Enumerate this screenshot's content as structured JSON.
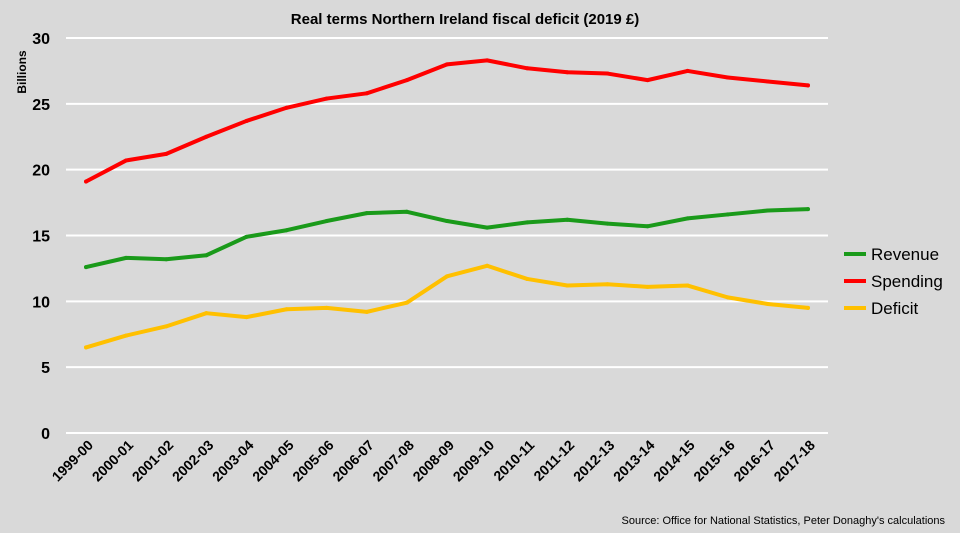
{
  "chart_data": {
    "type": "line",
    "title": "Real terms Northern Ireland fiscal deficit (2019 £)",
    "ylabel": "Billions",
    "xlabel": "",
    "ylim": [
      0,
      30
    ],
    "yticks": [
      0,
      5,
      10,
      15,
      20,
      25,
      30
    ],
    "grid": true,
    "legend_position": "right",
    "categories": [
      "1999-00",
      "2000-01",
      "2001-02",
      "2002-03",
      "2003-04",
      "2004-05",
      "2005-06",
      "2006-07",
      "2007-08",
      "2008-09",
      "2009-10",
      "2010-11",
      "2011-12",
      "2012-13",
      "2013-14",
      "2014-15",
      "2015-16",
      "2016-17",
      "2017-18"
    ],
    "series": [
      {
        "name": "Revenue",
        "color": "#1a9a1a",
        "values": [
          12.6,
          13.3,
          13.2,
          13.5,
          14.9,
          15.4,
          16.1,
          16.7,
          16.8,
          16.1,
          15.6,
          16.0,
          16.2,
          15.9,
          15.7,
          16.3,
          16.6,
          16.9,
          17.0
        ]
      },
      {
        "name": "Spending",
        "color": "#ff0000",
        "values": [
          19.1,
          20.7,
          21.2,
          22.5,
          23.7,
          24.7,
          25.4,
          25.8,
          26.8,
          28.0,
          28.3,
          27.7,
          27.4,
          27.3,
          26.8,
          27.5,
          27.0,
          26.7,
          26.4
        ]
      },
      {
        "name": "Deficit",
        "color": "#ffc000",
        "values": [
          6.5,
          7.4,
          8.1,
          9.1,
          8.8,
          9.4,
          9.5,
          9.2,
          9.9,
          11.9,
          12.7,
          11.7,
          11.2,
          11.3,
          11.1,
          11.2,
          10.3,
          9.8,
          9.5
        ]
      }
    ],
    "source": "Source: Office for National Statistics, Peter Donaghy's calculations"
  }
}
